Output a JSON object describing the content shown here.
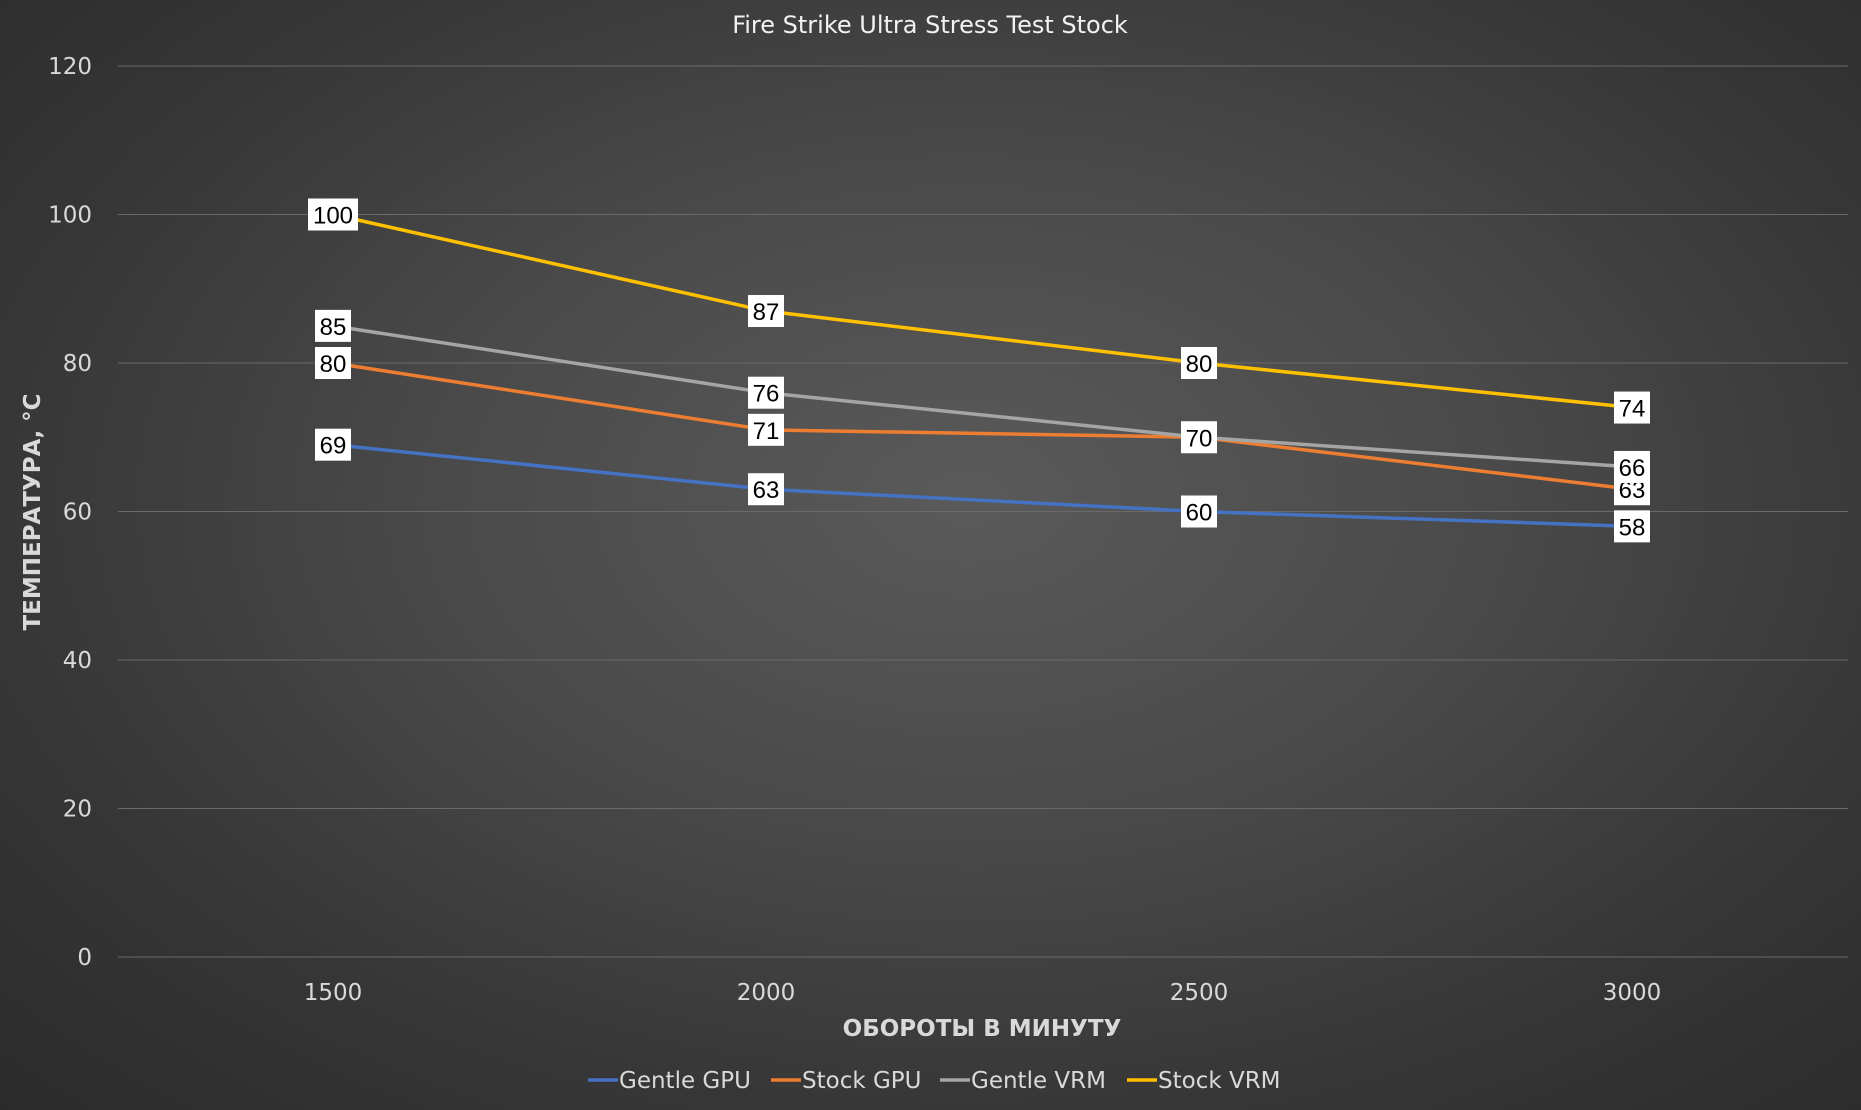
{
  "chart_data": {
    "type": "line",
    "title": "Fire Strike Ultra Stress Test Stock",
    "xlabel": "ОБОРОТЫ В МИНУТУ",
    "ylabel": "ТЕМПЕРАТУРА, °C",
    "categories": [
      "1500",
      "2000",
      "2500",
      "3000"
    ],
    "ylim": [
      0,
      120
    ],
    "yticks": [
      "0",
      "20",
      "40",
      "60",
      "80",
      "100",
      "120"
    ],
    "grid": true,
    "legend_position": "bottom",
    "series": [
      {
        "name": "Gentle GPU",
        "color": "#4472C4",
        "values": [
          69,
          63,
          60,
          58
        ]
      },
      {
        "name": "Stock GPU",
        "color": "#ED7D31",
        "values": [
          80,
          71,
          70,
          63
        ]
      },
      {
        "name": "Gentle VRM",
        "color": "#A5A5A5",
        "values": [
          85,
          76,
          70,
          66
        ]
      },
      {
        "name": "Stock VRM",
        "color": "#FFC000",
        "values": [
          100,
          87,
          80,
          74
        ]
      }
    ],
    "data_labels": [
      {
        "series": 0,
        "labels": [
          "69",
          "63",
          "60",
          "58"
        ]
      },
      {
        "series": 1,
        "labels": [
          "80",
          "71",
          "",
          "63"
        ]
      },
      {
        "series": 2,
        "labels": [
          "85",
          "76",
          "70",
          "66"
        ]
      },
      {
        "series": 3,
        "labels": [
          "100",
          "87",
          "80",
          "74"
        ]
      }
    ]
  }
}
